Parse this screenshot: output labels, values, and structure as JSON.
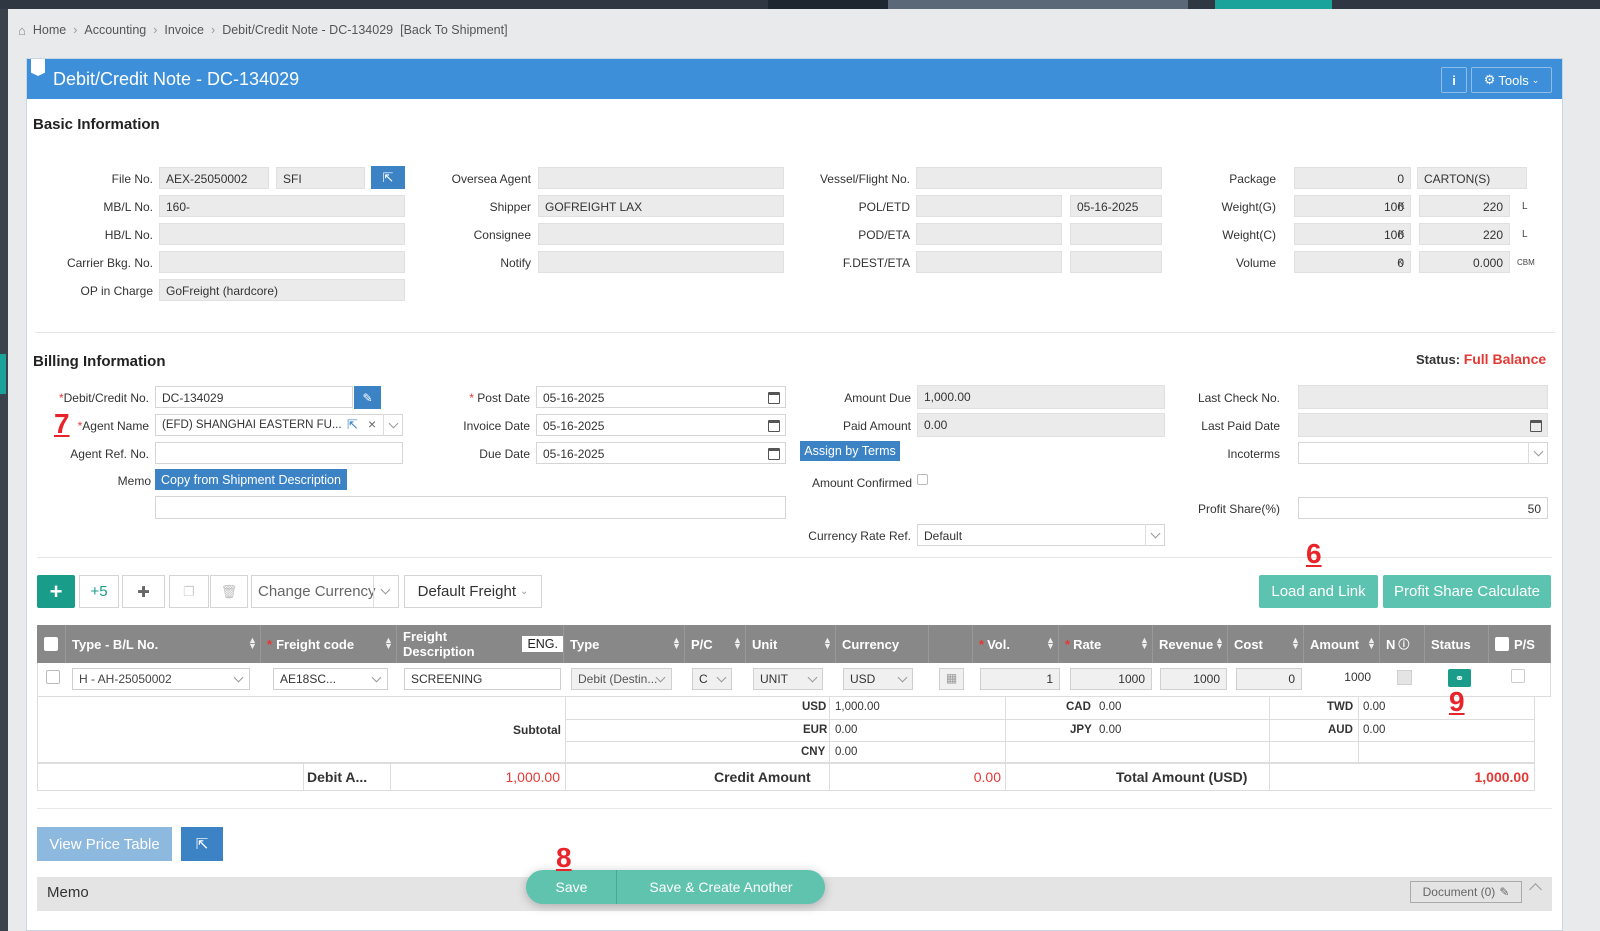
{
  "breadcrumb": {
    "home": "Home",
    "accounting": "Accounting",
    "invoice": "Invoice",
    "current": "Debit/Credit Note - DC-134029",
    "back": "[Back To Shipment]"
  },
  "header": {
    "title": "Debit/Credit Note - DC-134029",
    "info": "i",
    "tools": "Tools"
  },
  "basic": {
    "title": "Basic Information",
    "file_no_label": "File No.",
    "file_no": "AEX-25050002",
    "file_type": "SFI",
    "mbl_label": "MB/L No.",
    "mbl": "160-",
    "hbl_label": "HB/L No.",
    "hbl": "",
    "carrier_label": "Carrier Bkg. No.",
    "carrier": "",
    "op_label": "OP in Charge",
    "op": "GoFreight (hardcore)",
    "oversea_label": "Oversea Agent",
    "oversea": "",
    "shipper_label": "Shipper",
    "shipper": "GOFREIGHT LAX",
    "consignee_label": "Consignee",
    "consignee": "",
    "notify_label": "Notify",
    "notify": "",
    "vessel_label": "Vessel/Flight No.",
    "vessel": "",
    "pol_label": "POL/ETD",
    "pol": "",
    "etd": "05-16-2025",
    "pod_label": "POD/ETA",
    "pod": "",
    "eta": "",
    "fdest_label": "F.DEST/ETA",
    "fdest": "",
    "fdest_eta": "",
    "package_label": "Package",
    "package": "0",
    "package_unit": "CARTON(S)",
    "wg_label": "Weight(G)",
    "wg_k": "100",
    "wg_k_unit": "K",
    "wg_l": "220",
    "wg_l_unit": "L",
    "wc_label": "Weight(C)",
    "wc_k": "100",
    "wc_k_unit": "K",
    "wc_l": "220",
    "wc_l_unit": "L",
    "vol_label": "Volume",
    "vol_k": "0",
    "vol_k_unit": "K",
    "vol_cbm": "0.000",
    "vol_cbm_unit": "CBM"
  },
  "billing": {
    "title": "Billing Information",
    "status_label": "Status:",
    "status": "Full Balance",
    "dc_label": "Debit/Credit No.",
    "dc": "DC-134029",
    "agent_label": "Agent Name",
    "agent": "(EFD) SHANGHAI EASTERN FU...",
    "agent_ref_label": "Agent Ref. No.",
    "agent_ref": "",
    "memo_label": "Memo",
    "copy_btn": "Copy from Shipment Description",
    "memo": "",
    "post_label": "Post Date",
    "post": "05-16-2025",
    "inv_label": "Invoice Date",
    "inv": "05-16-2025",
    "due_label": "Due Date",
    "due": "05-16-2025",
    "amt_due_label": "Amount Due",
    "amt_due": "1,000.00",
    "paid_label": "Paid Amount",
    "paid": "0.00",
    "assign_btn": "Assign by Terms",
    "confirmed_label": "Amount Confirmed",
    "rate_label": "Currency Rate Ref.",
    "rate": "Default",
    "last_check_label": "Last Check No.",
    "last_check": "",
    "last_paid_label": "Last Paid Date",
    "last_paid": "",
    "incoterms_label": "Incoterms",
    "incoterms": "",
    "profit_label": "Profit Share(%)",
    "profit": "50"
  },
  "toolbar": {
    "add": "+",
    "plus5": "+5",
    "change_currency": "Change Currency",
    "default_freight": "Default Freight",
    "load_link": "Load and Link",
    "profit_calc": "Profit Share Calculate"
  },
  "table": {
    "headers": {
      "type_bl": "Type - B/L No.",
      "freight_code": "Freight code",
      "freight_desc": "Freight Description",
      "eng": "ENG.",
      "type": "Type",
      "pc": "P/C",
      "unit": "Unit",
      "currency": "Currency",
      "vol": "Vol.",
      "rate": "Rate",
      "revenue": "Revenue",
      "cost": "Cost",
      "amount": "Amount",
      "n": "N",
      "status": "Status",
      "ps": "P/S"
    },
    "row": {
      "type_bl": "H - AH-25050002",
      "freight_code": "AE18SC...",
      "freight_desc": "SCREENING",
      "type": "Debit (Destin...",
      "pc": "C",
      "unit": "UNIT",
      "currency": "USD",
      "vol": "1",
      "rate": "1000",
      "revenue": "1000",
      "cost": "0",
      "amount": "1000"
    }
  },
  "subtotal": {
    "label": "Subtotal",
    "usd_l": "USD",
    "usd": "1,000.00",
    "eur_l": "EUR",
    "eur": "0.00",
    "cny_l": "CNY",
    "cny": "0.00",
    "cad_l": "CAD",
    "cad": "0.00",
    "jpy_l": "JPY",
    "jpy": "0.00",
    "twd_l": "TWD",
    "twd": "0.00",
    "aud_l": "AUD",
    "aud": "0.00"
  },
  "totals": {
    "debit_label": "Debit A...",
    "debit": "1,000.00",
    "credit_label": "Credit Amount",
    "credit": "0.00",
    "total_label": "Total Amount (USD)",
    "total": "1,000.00"
  },
  "bottom": {
    "view_price": "View Price Table",
    "memo": "Memo",
    "document": "Document (0)",
    "save": "Save",
    "save_another": "Save & Create Another"
  },
  "annotations": {
    "a6": "6",
    "a7": "7",
    "a8": "8",
    "a9": "9"
  }
}
